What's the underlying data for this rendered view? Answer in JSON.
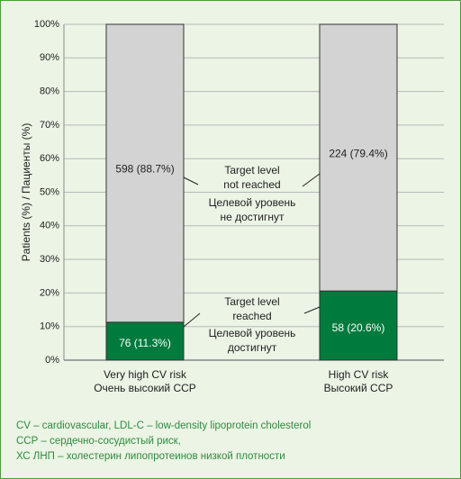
{
  "chart_data": {
    "type": "bar",
    "stacked": true,
    "percent": true,
    "ylabel": "Patients (%) / Пациенты (%)",
    "ylim": [
      0,
      100
    ],
    "yticks": [
      "0%",
      "10%",
      "20%",
      "30%",
      "40%",
      "50%",
      "60%",
      "70%",
      "80%",
      "90%",
      "100%"
    ],
    "grid": true,
    "categories": [
      [
        "Very high CV risk",
        "Очень высокий ССР"
      ],
      [
        "High CV risk",
        "Высокий ССР"
      ]
    ],
    "series": [
      {
        "name": "Target level reached / Целевой уровень достигнут",
        "values": [
          11.3,
          20.6
        ],
        "labels": [
          "76 (11.3%)",
          "58 (20.6%)"
        ],
        "color": "#007a3d"
      },
      {
        "name": "Target level not reached / Целевой уровень не достигнут",
        "values": [
          88.7,
          79.4
        ],
        "labels": [
          "598 (88.7%)",
          "224 (79.4%)"
        ],
        "color": "#d3d3d3"
      }
    ],
    "annotations": [
      [
        "Target level",
        "not reached",
        "Целевой уровень",
        "не достигнут"
      ],
      [
        "Target level",
        "reached",
        "Целевой уровень",
        "достигнут"
      ]
    ]
  },
  "footnotes": [
    "CV – cardiovascular, LDL-C – low-density lipoprotein cholesterol",
    "ССР – сердечно-сосудистый риск,",
    "ХС ЛНП – холестерин липопротеинов низкой плотности"
  ],
  "colors": {
    "background": "#ebf4e5",
    "border": "#4f9a3e",
    "grid": "#b8b8b8",
    "footnote_text": "#2f8a3e"
  }
}
